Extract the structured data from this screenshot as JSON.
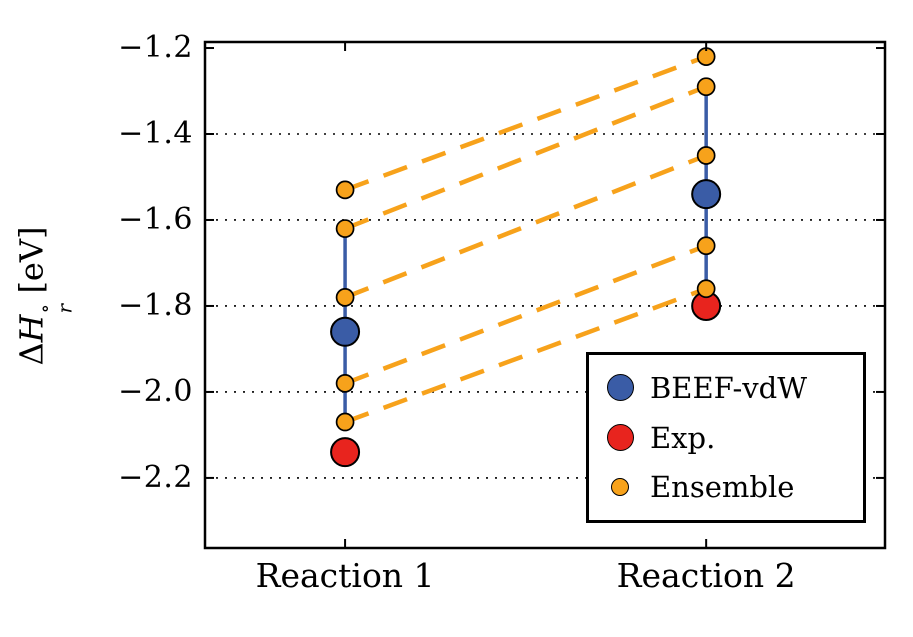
{
  "chart_data": {
    "type": "scatter",
    "title": "",
    "ylabel": {
      "delta": "Δ",
      "symbol": "H",
      "sup": "∘",
      "sub": "r",
      "unit": "[eV]"
    },
    "categories": [
      "Reaction 1",
      "Reaction 2"
    ],
    "ylim": [
      -2.363,
      -1.186
    ],
    "yticks": [
      -1.2,
      -1.4,
      -1.6,
      -1.8,
      -2.0,
      -2.2
    ],
    "ytick_labels": [
      "−1.2",
      "−1.4",
      "−1.6",
      "−1.8",
      "−2.0",
      "−2.2"
    ],
    "gridlines": [
      -1.4,
      -1.6,
      -1.8,
      -2.0,
      -2.2
    ],
    "grid_style": "dotted",
    "legend_position": "lower right",
    "axis_color": "#000000",
    "series": [
      {
        "name": "BEEF-vdW",
        "color": "#3A5CA6",
        "marker_radius": 14,
        "values": [
          -1.86,
          -1.54
        ]
      },
      {
        "name": "Exp.",
        "color": "#E8241E",
        "marker_radius": 14,
        "values": [
          -2.14,
          -1.8
        ]
      },
      {
        "name": "Ensemble",
        "color": "#F7A21B",
        "marker_radius": 8.5,
        "values": [
          [
            -1.53,
            -1.62,
            -1.78,
            -1.98,
            -2.07
          ],
          [
            -1.22,
            -1.29,
            -1.45,
            -1.66,
            -1.76
          ]
        ],
        "connected_by_dashed_lines": true
      }
    ],
    "spread_ranges": [
      [
        -2.07,
        -1.62
      ],
      [
        -1.76,
        -1.29
      ]
    ]
  }
}
